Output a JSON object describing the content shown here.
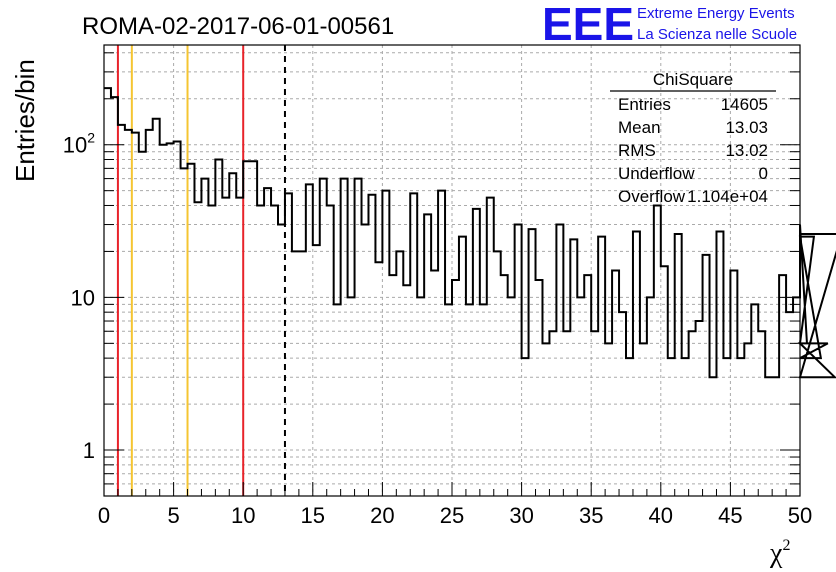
{
  "chart_data": {
    "type": "histogram",
    "title": "ROMA-02-2017-06-01-00561",
    "xlabel": "χ",
    "xlabel_superscript": "2",
    "ylabel": "Entries/bin",
    "xlim": [
      0,
      50
    ],
    "ylim": [
      0.5,
      450
    ],
    "yscale": "log",
    "grid": true,
    "bin_width": 0.5,
    "x_ticks": [
      "0",
      "5",
      "10",
      "15",
      "20",
      "25",
      "30",
      "35",
      "40",
      "45",
      "50"
    ],
    "x_tick_values": [
      0,
      5,
      10,
      15,
      20,
      25,
      30,
      35,
      40,
      45,
      50
    ],
    "y_ticks": [
      {
        "value": 1,
        "base": "1",
        "exp": ""
      },
      {
        "value": 10,
        "base": "10",
        "exp": ""
      },
      {
        "value": 100,
        "base": "10",
        "exp": "2"
      }
    ],
    "values": [
      235,
      205,
      135,
      125,
      120,
      90,
      125,
      148,
      100,
      102,
      105,
      70,
      75,
      42,
      60,
      40,
      80,
      45,
      65,
      45,
      78,
      78,
      40,
      52,
      40,
      30,
      48,
      20,
      20,
      55,
      22,
      60,
      40,
      9,
      60,
      10,
      60,
      30,
      47,
      17,
      50,
      14,
      20,
      12,
      48,
      10,
      35,
      15,
      50,
      9,
      13,
      25,
      9,
      38,
      9,
      45,
      20,
      14,
      10,
      30,
      4,
      28,
      13,
      5,
      6,
      30,
      6,
      24,
      10,
      14,
      6,
      25,
      5,
      15,
      8,
      4,
      27,
      5,
      10,
      40,
      16,
      4,
      26,
      4,
      6,
      7,
      19,
      3,
      27,
      4,
      15,
      4,
      5,
      9,
      6,
      3,
      3,
      14,
      8,
      10,
      30,
      5,
      25,
      4,
      5,
      3,
      26
    ],
    "vlines": [
      {
        "x": 1,
        "color": "#e8232a",
        "style": "solid"
      },
      {
        "x": 2,
        "color": "#f5c531",
        "style": "solid"
      },
      {
        "x": 6,
        "color": "#f5c531",
        "style": "solid"
      },
      {
        "x": 10,
        "color": "#e8232a",
        "style": "solid"
      },
      {
        "x": 13,
        "color": "#000000",
        "style": "dashed"
      }
    ],
    "stats_box": {
      "title": "ChiSquare",
      "rows": [
        {
          "label": "Entries",
          "value": "14605"
        },
        {
          "label": "Mean",
          "value": "13.03"
        },
        {
          "label": "RMS",
          "value": "13.02"
        },
        {
          "label": "Underflow",
          "value": "0"
        },
        {
          "label": "Overflow",
          "value": "1.104e+04"
        }
      ]
    },
    "logo": {
      "text": "EEE",
      "line1": "Extreme Energy Events",
      "line2": "La Scienza nelle Scuole",
      "color": "#1a14e8"
    },
    "colors": {
      "histogram": "#000000",
      "grid": "#aaaaaa"
    }
  }
}
